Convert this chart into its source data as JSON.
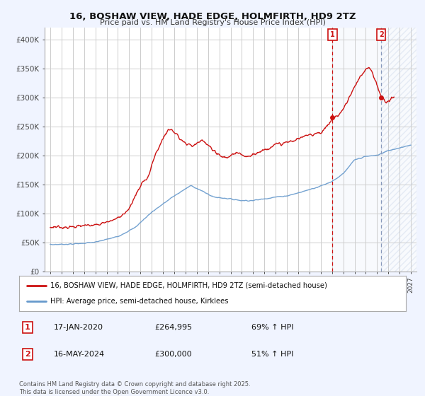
{
  "title": "16, BOSHAW VIEW, HADE EDGE, HOLMFIRTH, HD9 2TZ",
  "subtitle": "Price paid vs. HM Land Registry's House Price Index (HPI)",
  "ylim_min": 0,
  "ylim_max": 420000,
  "yticks": [
    0,
    50000,
    100000,
    150000,
    200000,
    250000,
    300000,
    350000,
    400000
  ],
  "ytick_labels": [
    "£0",
    "£50K",
    "£100K",
    "£150K",
    "£200K",
    "£250K",
    "£300K",
    "£350K",
    "£400K"
  ],
  "xticks": [
    1995,
    1996,
    1997,
    1998,
    1999,
    2000,
    2001,
    2002,
    2003,
    2004,
    2005,
    2006,
    2007,
    2008,
    2009,
    2010,
    2011,
    2012,
    2013,
    2014,
    2015,
    2016,
    2017,
    2018,
    2019,
    2020,
    2021,
    2022,
    2023,
    2024,
    2025,
    2026,
    2027
  ],
  "grid_color": "#cccccc",
  "hpi_color": "#6699cc",
  "price_color": "#cc1111",
  "vline1_color": "#cc1111",
  "vline2_color": "#8899bb",
  "sale1_date": 2020.04,
  "sale1_price": 264995,
  "sale2_date": 2024.37,
  "sale2_price": 300000,
  "legend_price_label": "16, BOSHAW VIEW, HADE EDGE, HOLMFIRTH, HD9 2TZ (semi-detached house)",
  "legend_hpi_label": "HPI: Average price, semi-detached house, Kirklees",
  "annotation1_date": "17-JAN-2020",
  "annotation1_price": "£264,995",
  "annotation1_hpi": "69% ↑ HPI",
  "annotation2_date": "16-MAY-2024",
  "annotation2_price": "£300,000",
  "annotation2_hpi": "51% ↑ HPI",
  "footer": "Contains HM Land Registry data © Crown copyright and database right 2025.\nThis data is licensed under the Open Government Licence v3.0.",
  "bg_color": "#f0f4ff",
  "chart_bg": "#ffffff",
  "shade1_color": "#dde6f5",
  "shade2_color": "#dde6f5",
  "hatch_color": "#c8d4e8"
}
